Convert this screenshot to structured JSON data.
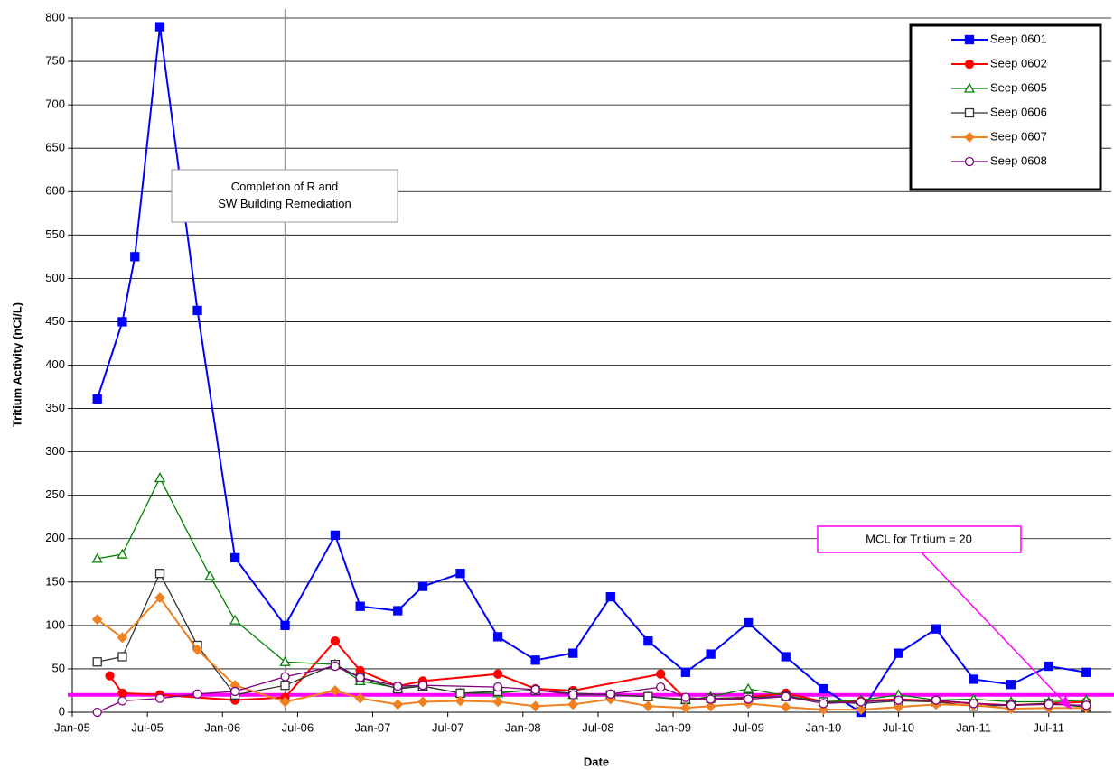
{
  "chart_data": {
    "type": "line",
    "x_label": "Date",
    "y_label": "Tritium Activity (nCi/L)",
    "xlim": [
      "2005-01",
      "2011-12"
    ],
    "xticks": [
      {
        "value": "2005-01",
        "label": "Jan-05"
      },
      {
        "value": "2005-07",
        "label": "Jul-05"
      },
      {
        "value": "2006-01",
        "label": "Jan-06"
      },
      {
        "value": "2006-07",
        "label": "Jul-06"
      },
      {
        "value": "2007-01",
        "label": "Jan-07"
      },
      {
        "value": "2007-07",
        "label": "Jul-07"
      },
      {
        "value": "2008-01",
        "label": "Jan-08"
      },
      {
        "value": "2008-07",
        "label": "Jul-08"
      },
      {
        "value": "2009-01",
        "label": "Jan-09"
      },
      {
        "value": "2009-07",
        "label": "Jul-09"
      },
      {
        "value": "2010-01",
        "label": "Jan-10"
      },
      {
        "value": "2010-07",
        "label": "Jul-10"
      },
      {
        "value": "2011-01",
        "label": "Jan-11"
      },
      {
        "value": "2011-07",
        "label": "Jul-11"
      }
    ],
    "ylim": [
      0,
      800
    ],
    "yticks": [
      0,
      50,
      100,
      150,
      200,
      250,
      300,
      350,
      400,
      450,
      500,
      550,
      600,
      650,
      700,
      750,
      800
    ],
    "grid": true,
    "legend": "top-right",
    "annotations": [
      {
        "text": "Completion of R and SW Building Remediation",
        "x": "2006-06",
        "color": "#999999"
      },
      {
        "text": "MCL for Tritium = 20",
        "y": 20,
        "color": "#ff00ff"
      }
    ],
    "series": [
      {
        "name": "Seep 0601",
        "color": "#0000ff",
        "marker": "square",
        "filled": true,
        "x": [
          "2005-03",
          "2005-05",
          "2005-06",
          "2005-08",
          "2005-11",
          "2006-02",
          "2006-06",
          "2006-10",
          "2006-12",
          "2007-03",
          "2007-05",
          "2007-08",
          "2007-11",
          "2008-02",
          "2008-05",
          "2008-08",
          "2008-11",
          "2009-02",
          "2009-04",
          "2009-07",
          "2009-10",
          "2010-01",
          "2010-04",
          "2010-07",
          "2010-10",
          "2011-01",
          "2011-04",
          "2011-07",
          "2011-10"
        ],
        "values": [
          361,
          450,
          525,
          790,
          463,
          178,
          100,
          204,
          122,
          117,
          145,
          160,
          87,
          60,
          68,
          133,
          82,
          46,
          67,
          103,
          64,
          27,
          0,
          68,
          96,
          38,
          32,
          53,
          46
        ]
      },
      {
        "name": "Seep 0602",
        "color": "#ff0000",
        "marker": "circle",
        "filled": true,
        "x": [
          "2005-04",
          "2005-05",
          "2005-08",
          "2006-02",
          "2006-06",
          "2006-10",
          "2006-12",
          "2007-03",
          "2007-05",
          "2007-11",
          "2008-02",
          "2008-05",
          "2008-12",
          "2009-02",
          "2009-04",
          "2009-07",
          "2009-10",
          "2010-01",
          "2010-04",
          "2010-07",
          "2010-10",
          "2011-01",
          "2011-04",
          "2011-07",
          "2011-10"
        ],
        "values": [
          42,
          22,
          20,
          14,
          17,
          82,
          48,
          30,
          36,
          44,
          27,
          25,
          44,
          15,
          15,
          17,
          22,
          12,
          13,
          15,
          13,
          10,
          8,
          10,
          12
        ]
      },
      {
        "name": "Seep 0605",
        "color": "#008000",
        "marker": "triangle",
        "filled": false,
        "x": [
          "2005-03",
          "2005-05",
          "2005-08",
          "2005-12",
          "2006-02",
          "2006-06",
          "2006-10",
          "2006-12",
          "2007-03",
          "2007-05",
          "2007-08",
          "2007-11",
          "2008-02",
          "2008-05",
          "2008-08",
          "2008-11",
          "2009-02",
          "2009-04",
          "2009-07",
          "2009-10",
          "2010-01",
          "2010-04",
          "2010-07",
          "2010-10",
          "2011-01",
          "2011-04",
          "2011-07",
          "2011-10"
        ],
        "values": [
          177,
          182,
          270,
          157,
          106,
          58,
          55,
          36,
          28,
          30,
          22,
          22,
          26,
          20,
          20,
          18,
          14,
          18,
          27,
          19,
          12,
          14,
          20,
          14,
          15,
          12,
          12,
          14
        ]
      },
      {
        "name": "Seep 0606",
        "color": "#333333",
        "marker": "square",
        "filled": false,
        "x": [
          "2005-03",
          "2005-05",
          "2005-08",
          "2005-11",
          "2006-02",
          "2006-06",
          "2006-10",
          "2006-12",
          "2007-03",
          "2007-05",
          "2007-08",
          "2007-11",
          "2008-02",
          "2008-05",
          "2008-08",
          "2008-11",
          "2009-02",
          "2009-04",
          "2009-07",
          "2009-10",
          "2010-01",
          "2010-04",
          "2010-07",
          "2010-10",
          "2011-01",
          "2011-04",
          "2011-07",
          "2011-10"
        ],
        "values": [
          58,
          64,
          160,
          77,
          20,
          31,
          55,
          40,
          27,
          30,
          22,
          24,
          25,
          22,
          20,
          18,
          15,
          16,
          17,
          18,
          12,
          10,
          13,
          12,
          7,
          8,
          10,
          6
        ]
      },
      {
        "name": "Seep 0607",
        "color": "#f08020",
        "marker": "diamond",
        "filled": true,
        "x": [
          "2005-03",
          "2005-05",
          "2005-08",
          "2005-11",
          "2006-02",
          "2006-06",
          "2006-10",
          "2006-12",
          "2007-03",
          "2007-05",
          "2007-08",
          "2007-11",
          "2008-02",
          "2008-05",
          "2008-08",
          "2008-11",
          "2009-02",
          "2009-04",
          "2009-07",
          "2009-10",
          "2010-01",
          "2010-04",
          "2010-07",
          "2010-10",
          "2011-01",
          "2011-04",
          "2011-07",
          "2011-10"
        ],
        "values": [
          107,
          86,
          132,
          72,
          31,
          12,
          25,
          16,
          9,
          12,
          13,
          12,
          7,
          9,
          15,
          7,
          5,
          7,
          10,
          6,
          3,
          3,
          6,
          9,
          8,
          4,
          5,
          5
        ]
      },
      {
        "name": "Seep 0608",
        "color": "#800080",
        "marker": "circle",
        "filled": false,
        "x": [
          "2005-03",
          "2005-05",
          "2005-08",
          "2005-11",
          "2006-02",
          "2006-06",
          "2006-10",
          "2006-12",
          "2007-03",
          "2007-05",
          "2007-11",
          "2008-02",
          "2008-05",
          "2008-08",
          "2008-12",
          "2009-02",
          "2009-04",
          "2009-07",
          "2009-10",
          "2010-01",
          "2010-04",
          "2010-07",
          "2010-10",
          "2011-01",
          "2011-04",
          "2011-07",
          "2011-10"
        ],
        "values": [
          0,
          13,
          16,
          21,
          24,
          41,
          53,
          40,
          30,
          31,
          29,
          26,
          20,
          21,
          29,
          17,
          15,
          15,
          18,
          10,
          12,
          14,
          14,
          10,
          8,
          9,
          8
        ]
      }
    ]
  }
}
